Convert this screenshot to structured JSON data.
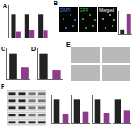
{
  "chart_data": [
    {
      "type": "bar",
      "title": "A",
      "categories": [
        null,
        null,
        null
      ],
      "series": [
        {
          "color": "#222222",
          "values": [
            1.0,
            1.0,
            1.0
          ]
        },
        {
          "color": "#8e3a8e",
          "values": [
            0.25,
            0.35,
            0.3
          ]
        }
      ],
      "ylim": [
        0,
        1.4
      ],
      "tick_labels": false
    },
    {
      "type": "bar",
      "categories": [
        null,
        null
      ],
      "values": [
        20,
        85
      ],
      "colors": [
        "#222222",
        "#8e3a8e"
      ],
      "ylim": [
        0,
        100
      ],
      "tick_labels": false
    },
    {
      "type": "bar",
      "title": "C",
      "categories": [
        null,
        null
      ],
      "values": [
        1.0,
        0.45
      ],
      "colors": [
        "#222222",
        "#8e3a8e"
      ],
      "ylim": [
        0,
        1.2
      ],
      "tick_labels": false
    },
    {
      "type": "bar",
      "title": "D",
      "categories": [
        null,
        null
      ],
      "values": [
        1.0,
        0.35
      ],
      "colors": [
        "#222222",
        "#8e3a8e"
      ],
      "ylim": [
        0,
        1.2
      ],
      "tick_labels": false
    },
    {
      "type": "bar",
      "categories": [
        null,
        null
      ],
      "values": [
        1.0,
        0.4
      ],
      "colors": [
        "#222222",
        "#8e3a8e"
      ],
      "ylim": [
        0,
        1.2
      ],
      "tick_labels": false
    },
    {
      "type": "bar",
      "categories": [
        null,
        null
      ],
      "values": [
        1.0,
        0.5
      ],
      "colors": [
        "#222222",
        "#8e3a8e"
      ],
      "ylim": [
        0,
        1.2
      ],
      "tick_labels": false
    },
    {
      "type": "bar",
      "categories": [
        null,
        null
      ],
      "values": [
        1.0,
        0.45
      ],
      "colors": [
        "#222222",
        "#8e3a8e"
      ],
      "ylim": [
        0,
        1.2
      ],
      "tick_labels": false
    },
    {
      "type": "bar",
      "categories": [
        null,
        null
      ],
      "values": [
        1.0,
        0.55
      ],
      "colors": [
        "#222222",
        "#8e3a8e"
      ],
      "ylim": [
        0,
        1.2
      ],
      "tick_labels": false
    }
  ],
  "image_panels": [
    {
      "label": "B",
      "items": [
        {
          "text": "DAPI",
          "color": "#4a7ce0"
        },
        {
          "text": "GFP",
          "color": "#3fc24a"
        },
        {
          "text": "Merged",
          "color": "#ffffff"
        }
      ]
    },
    {
      "label": "E",
      "count": 4
    }
  ],
  "blot": {
    "label": "F",
    "rows": 5,
    "lanes": 4
  }
}
